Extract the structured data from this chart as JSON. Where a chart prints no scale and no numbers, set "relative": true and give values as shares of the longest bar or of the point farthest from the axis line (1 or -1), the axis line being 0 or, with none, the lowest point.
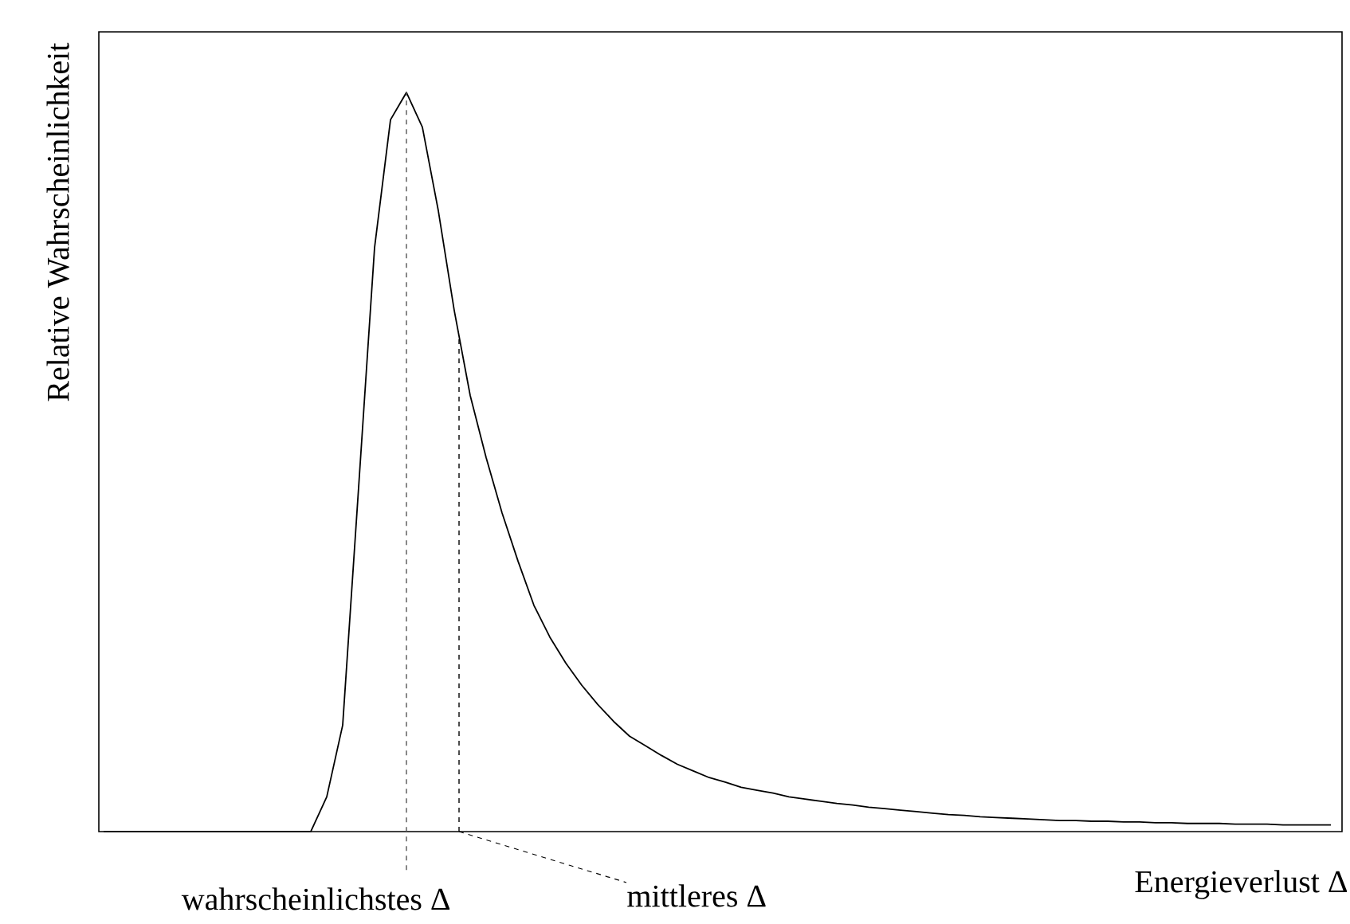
{
  "chart_data": {
    "type": "line",
    "relative": true,
    "xlabel": "Energieverlust Δ",
    "ylabel": "Relative Wahrscheinlichkeit",
    "categories": [
      null,
      null,
      null,
      null,
      null,
      null,
      null,
      null,
      null,
      null,
      null,
      null,
      null,
      null,
      null,
      null,
      null,
      null,
      null,
      null,
      null,
      null,
      null,
      null,
      null,
      null,
      null,
      null,
      null,
      null,
      null,
      null,
      null,
      null,
      null,
      null,
      null,
      null,
      null,
      null,
      null,
      null,
      null,
      null,
      null,
      null,
      null,
      null,
      null,
      null,
      null,
      null,
      null,
      null,
      null,
      null,
      null,
      null,
      null,
      null,
      null,
      null,
      null,
      null,
      null,
      null,
      null,
      null,
      null,
      null,
      null,
      null,
      null,
      null,
      null,
      null,
      null,
      null
    ],
    "series": [
      {
        "color": "#000000",
        "values": [
          0,
          0,
          0,
          0,
          0,
          0,
          0,
          0,
          0,
          0,
          0,
          0,
          0,
          0,
          0.047,
          0.144,
          0.466,
          0.79,
          0.963,
          1,
          0.953,
          0.84,
          0.705,
          0.59,
          0.506,
          0.431,
          0.366,
          0.306,
          0.263,
          0.228,
          0.198,
          0.172,
          0.149,
          0.129,
          0.116,
          0.103,
          0.091,
          0.082,
          0.073,
          0.067,
          0.06,
          0.056,
          0.052,
          0.047,
          0.044,
          0.041,
          0.038,
          0.036,
          0.033,
          0.031,
          0.029,
          0.027,
          0.025,
          0.023,
          0.022,
          0.02,
          0.019,
          0.018,
          0.017,
          0.016,
          0.015,
          0.015,
          0.014,
          0.014,
          0.013,
          0.013,
          0.012,
          0.012,
          0.011,
          0.011,
          0.011,
          0.01,
          0.01,
          0.01,
          0.009,
          0.009,
          0.009,
          0.009
        ]
      }
    ],
    "annotations": [
      "wahrscheinlichstes Δ",
      "mittleres Δ"
    ],
    "line_style": "solid",
    "marker": "none"
  }
}
